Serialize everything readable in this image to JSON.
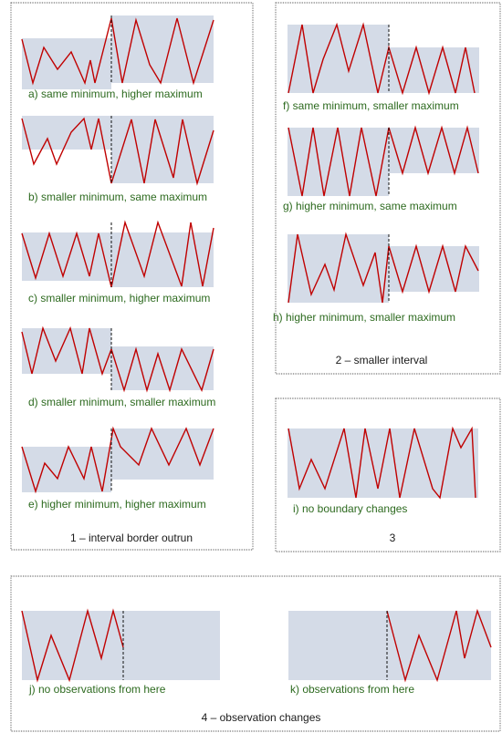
{
  "groups": [
    {
      "id": "g1",
      "title": "1 – interval border outrun"
    },
    {
      "id": "g2",
      "title": "2 – smaller interval"
    },
    {
      "id": "g3",
      "title": "3"
    },
    {
      "id": "g4",
      "title": "4 – observation changes"
    }
  ],
  "examples": [
    {
      "id": "a",
      "caption": "a) same minimum, higher maximum"
    },
    {
      "id": "b",
      "caption": "b) smaller minimum, same maximum"
    },
    {
      "id": "c",
      "caption": "c) smaller minimum, higher maximum"
    },
    {
      "id": "d",
      "caption": "d) smaller minimum, smaller maximum"
    },
    {
      "id": "e",
      "caption": "e) higher minimum, higher maximum"
    },
    {
      "id": "f",
      "caption": "f) same minimum, smaller maximum"
    },
    {
      "id": "g",
      "caption": "g) higher minimum, same maximum"
    },
    {
      "id": "h",
      "caption": "h) higher minimum, smaller maximum"
    },
    {
      "id": "i",
      "caption": "i) no boundary changes"
    },
    {
      "id": "j",
      "caption": "j) no observations from here"
    },
    {
      "id": "k",
      "caption": "k) observations from here"
    }
  ],
  "colors": {
    "band": "#d4dbe7",
    "line": "#c00000",
    "caption": "#2d6a1f",
    "marker": "#111111"
  }
}
